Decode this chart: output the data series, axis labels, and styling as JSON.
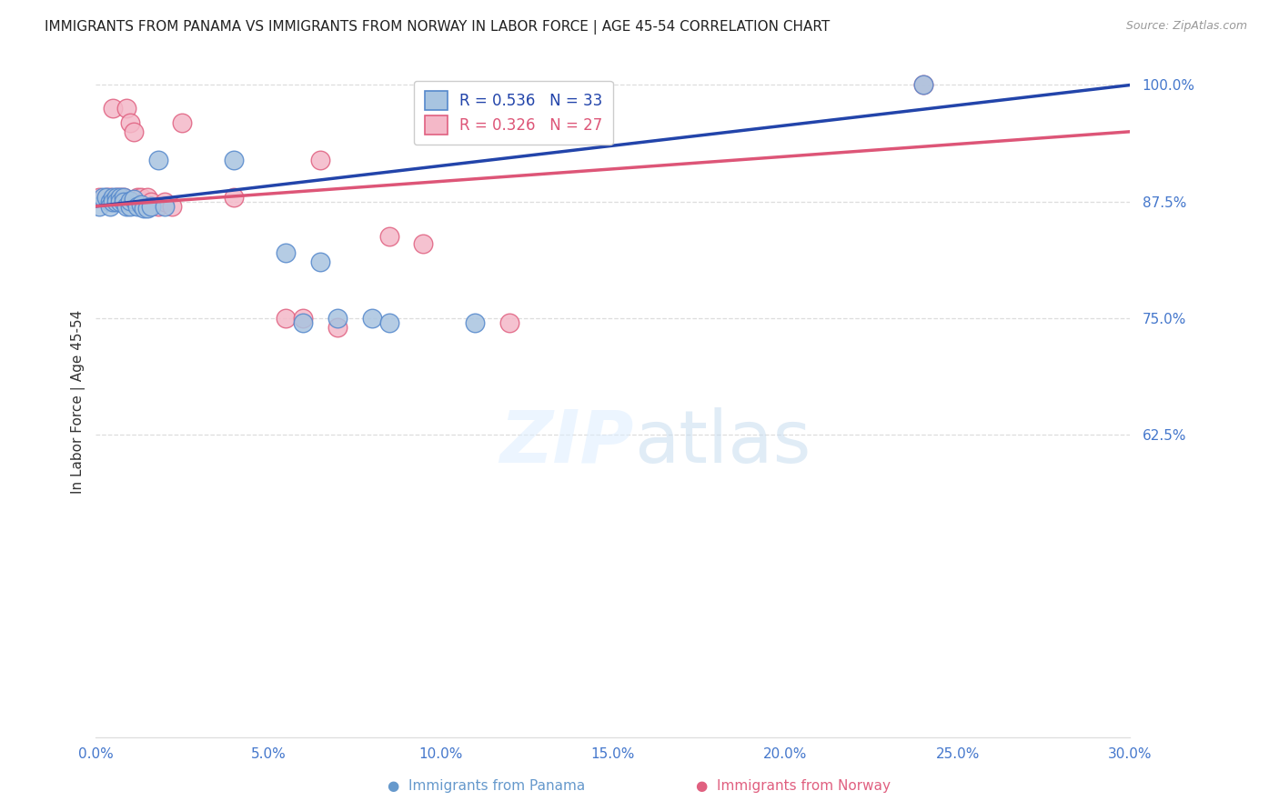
{
  "title": "IMMIGRANTS FROM PANAMA VS IMMIGRANTS FROM NORWAY IN LABOR FORCE | AGE 45-54 CORRELATION CHART",
  "source": "Source: ZipAtlas.com",
  "ylabel": "In Labor Force | Age 45-54",
  "xlim": [
    0.0,
    0.3
  ],
  "ylim": [
    0.3,
    1.02
  ],
  "xticks": [
    0.0,
    0.05,
    0.1,
    0.15,
    0.2,
    0.25,
    0.3
  ],
  "xtick_labels": [
    "0.0%",
    "5.0%",
    "10.0%",
    "15.0%",
    "20.0%",
    "25.0%",
    "30.0%"
  ],
  "yticks": [
    0.625,
    0.75,
    0.875,
    1.0
  ],
  "ytick_labels": [
    "62.5%",
    "75.0%",
    "87.5%",
    "100.0%"
  ],
  "panama_color": "#a8c4e0",
  "norway_color": "#f4b8c8",
  "panama_edge": "#5588cc",
  "norway_edge": "#e06080",
  "line_panama_color": "#2244aa",
  "line_norway_color": "#dd5577",
  "legend_r_panama": "R = 0.536",
  "legend_n_panama": "N = 33",
  "legend_r_norway": "R = 0.326",
  "legend_n_norway": "N = 27",
  "panama_x": [
    0.001,
    0.002,
    0.003,
    0.004,
    0.004,
    0.005,
    0.005,
    0.006,
    0.006,
    0.007,
    0.007,
    0.008,
    0.008,
    0.009,
    0.01,
    0.01,
    0.011,
    0.012,
    0.013,
    0.014,
    0.015,
    0.016,
    0.018,
    0.02,
    0.04,
    0.055,
    0.06,
    0.065,
    0.07,
    0.08,
    0.085,
    0.11,
    0.24
  ],
  "panama_y": [
    0.87,
    0.88,
    0.88,
    0.875,
    0.87,
    0.88,
    0.875,
    0.88,
    0.875,
    0.88,
    0.875,
    0.88,
    0.875,
    0.87,
    0.87,
    0.876,
    0.878,
    0.87,
    0.872,
    0.868,
    0.868,
    0.87,
    0.92,
    0.87,
    0.92,
    0.82,
    0.745,
    0.81,
    0.75,
    0.75,
    0.745,
    0.745,
    1.0
  ],
  "norway_x": [
    0.001,
    0.003,
    0.004,
    0.005,
    0.006,
    0.007,
    0.008,
    0.009,
    0.01,
    0.011,
    0.012,
    0.013,
    0.015,
    0.016,
    0.018,
    0.02,
    0.022,
    0.025,
    0.04,
    0.055,
    0.06,
    0.065,
    0.07,
    0.085,
    0.095,
    0.12,
    0.24
  ],
  "norway_y": [
    0.88,
    0.88,
    0.88,
    0.975,
    0.88,
    0.88,
    0.88,
    0.975,
    0.96,
    0.95,
    0.88,
    0.88,
    0.88,
    0.875,
    0.87,
    0.875,
    0.87,
    0.96,
    0.88,
    0.75,
    0.75,
    0.92,
    0.74,
    0.838,
    0.83,
    0.745,
    1.0
  ],
  "fig_width": 14.06,
  "fig_height": 8.92
}
